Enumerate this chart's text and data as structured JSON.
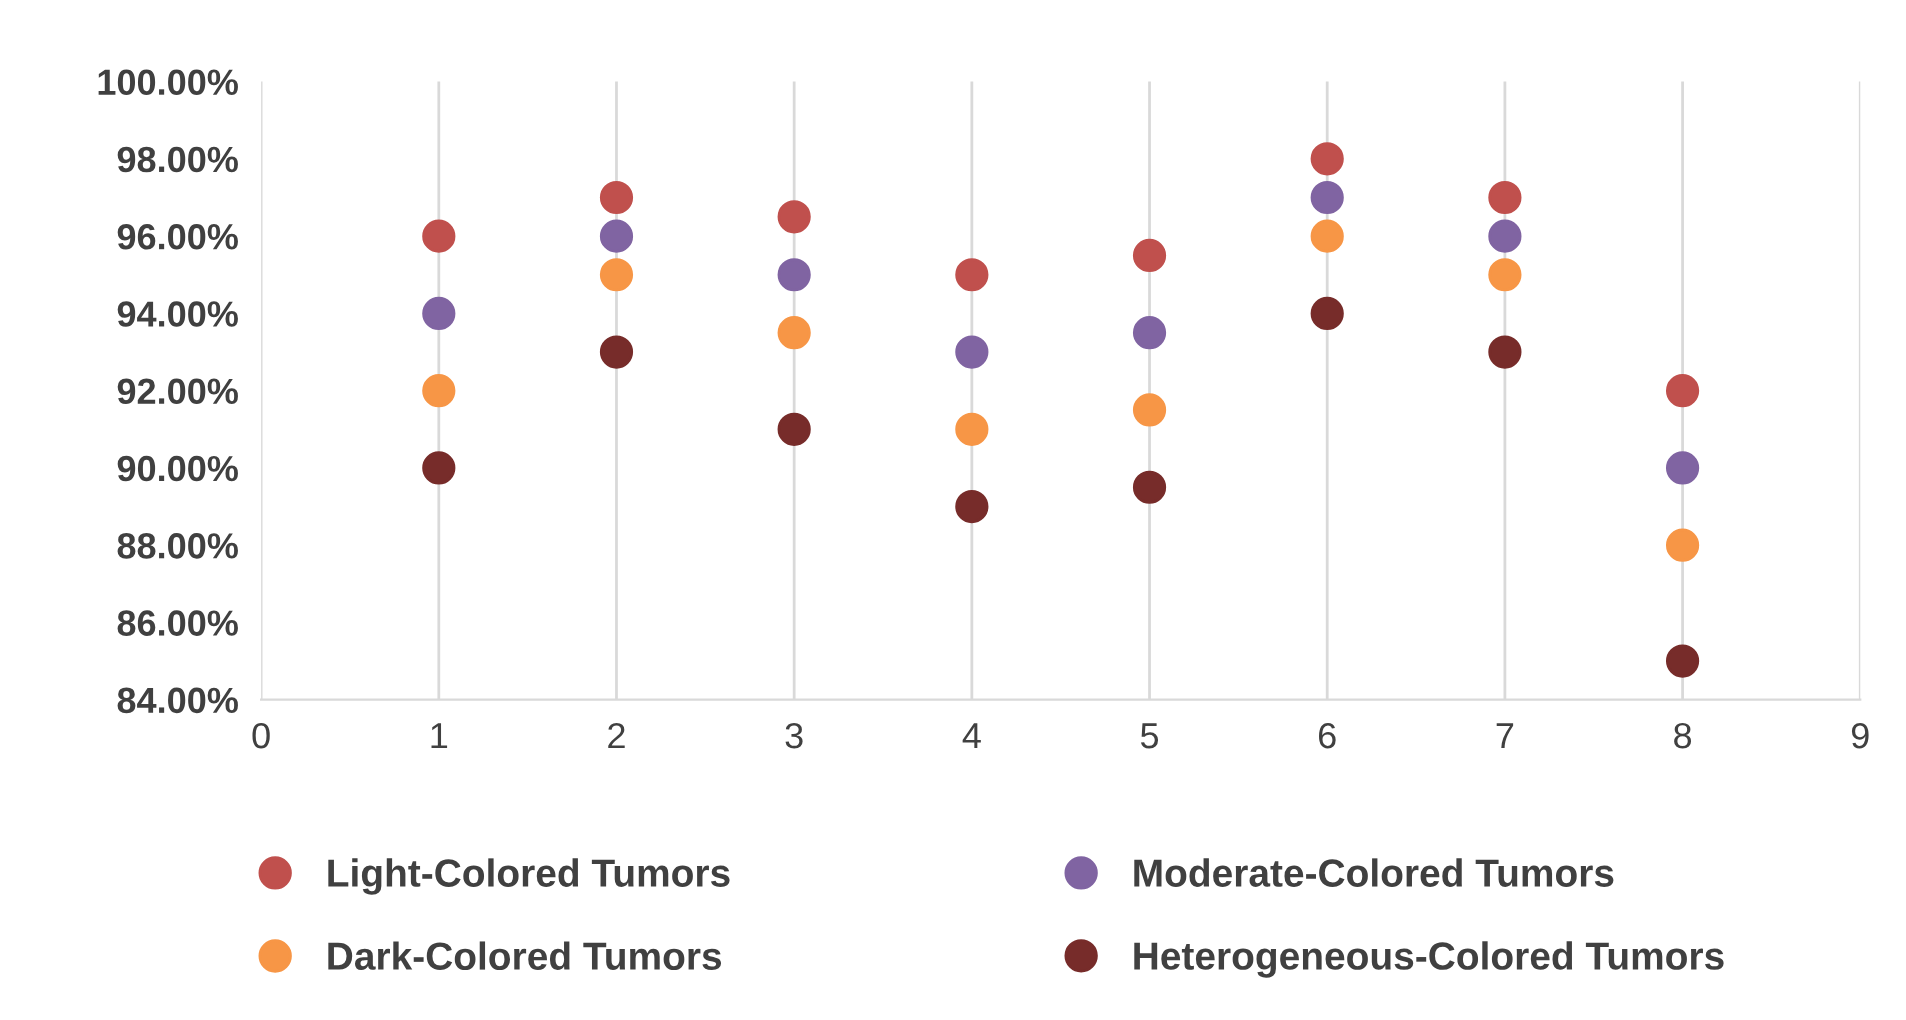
{
  "chart_data": {
    "type": "scatter",
    "x": [
      1,
      2,
      3,
      4,
      5,
      6,
      7,
      8
    ],
    "series": [
      {
        "name": "Light-Colored Tumors",
        "color": "#c0504d",
        "values": [
          96,
          97,
          96.5,
          95,
          95.5,
          98,
          97,
          92
        ]
      },
      {
        "name": "Moderate-Colored Tumors",
        "color": "#8064a2",
        "values": [
          94,
          96,
          95,
          93,
          93.5,
          97,
          96,
          90
        ]
      },
      {
        "name": "Dark-Colored Tumors",
        "color": "#f79646",
        "values": [
          92,
          95,
          93.5,
          91,
          91.5,
          96,
          95,
          88
        ]
      },
      {
        "name": "Heterogeneous-Colored Tumors",
        "color": "#772c2a",
        "values": [
          90,
          93,
          91,
          89,
          89.5,
          94,
          93,
          85
        ]
      }
    ],
    "xlim": [
      0,
      9
    ],
    "xticks": [
      0,
      1,
      2,
      3,
      4,
      5,
      6,
      7,
      8,
      9
    ],
    "ylim": [
      84,
      100
    ],
    "yticks": [
      {
        "value": 84,
        "label": "84.00%"
      },
      {
        "value": 86,
        "label": "86.00%"
      },
      {
        "value": 88,
        "label": "88.00%"
      },
      {
        "value": 90,
        "label": "90.00%"
      },
      {
        "value": 92,
        "label": "92.00%"
      },
      {
        "value": 94,
        "label": "94.00%"
      },
      {
        "value": 96,
        "label": "96.00%"
      },
      {
        "value": 98,
        "label": "98.00%"
      },
      {
        "value": 100,
        "label": "100.00%"
      }
    ],
    "grid": "x",
    "legend": "bottom",
    "marker": "circle"
  }
}
